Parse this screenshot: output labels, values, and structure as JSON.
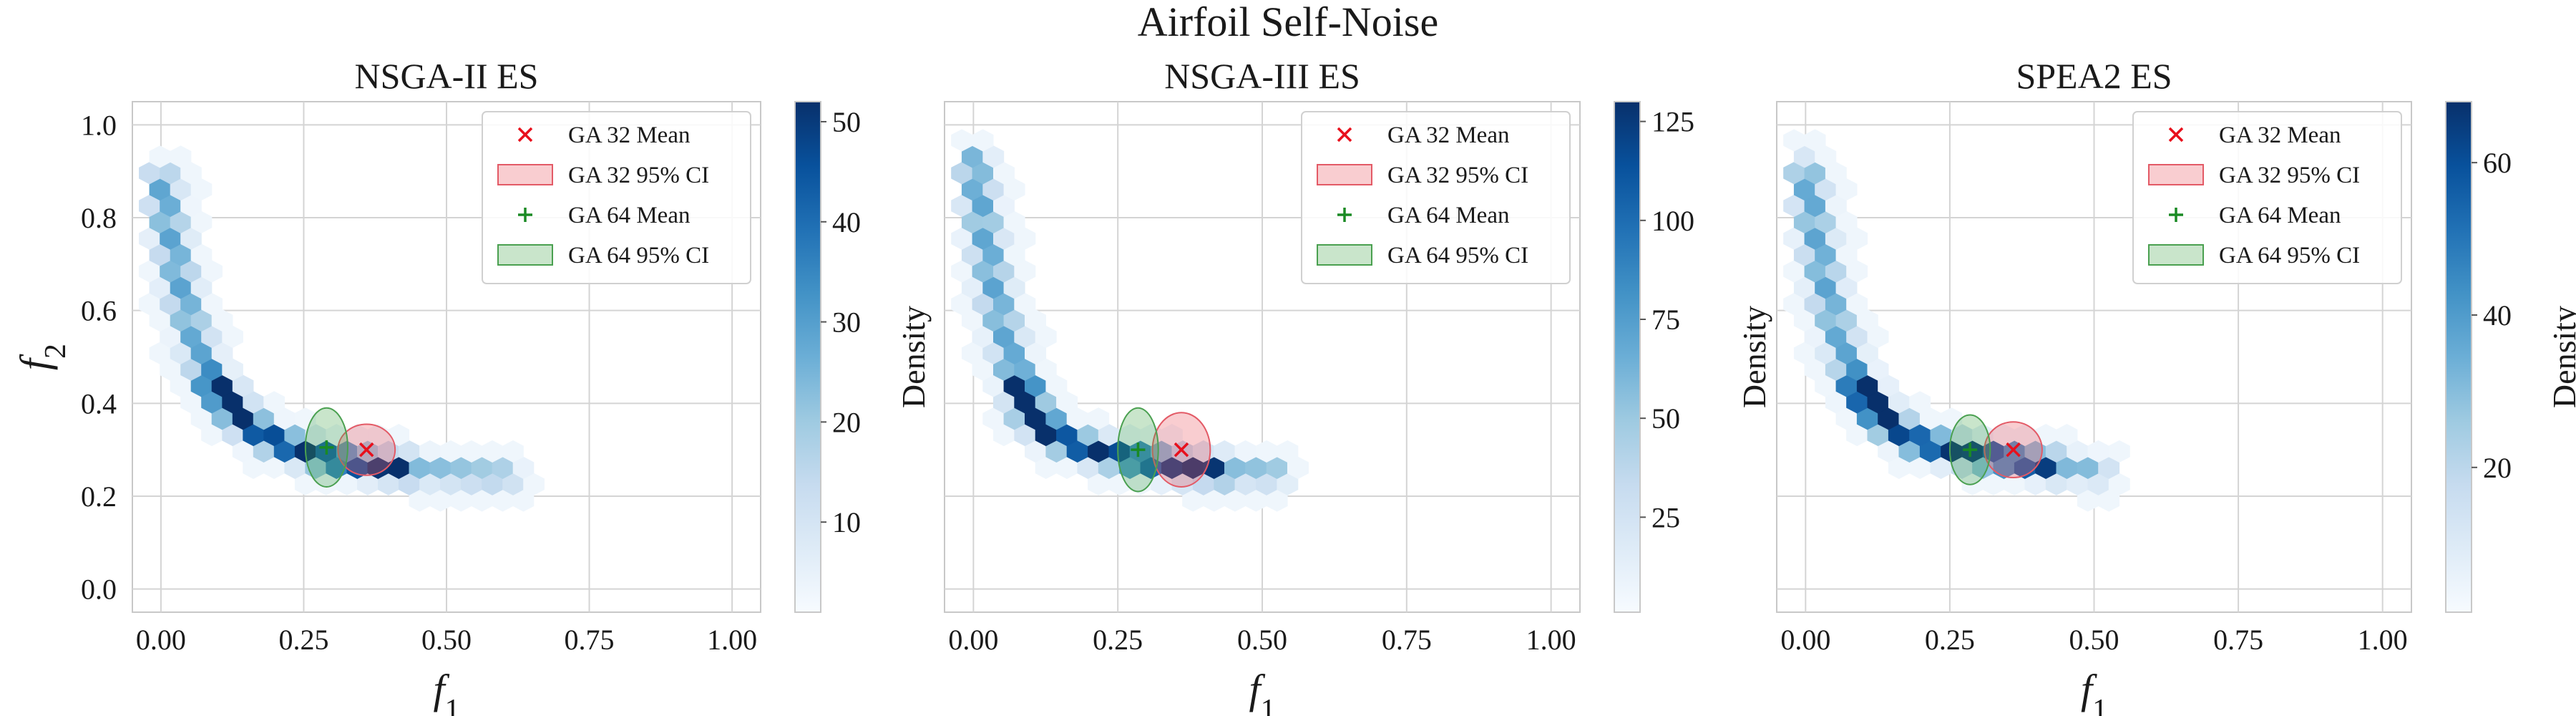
{
  "figure_title": "Airfoil Self-Noise",
  "colors": {
    "ga32": "#e8101c",
    "ga32_fill": "rgba(235,90,100,0.30)",
    "ga64": "#1a8a24",
    "ga64_fill": "rgba(60,160,70,0.28)",
    "colormap": "Blues"
  },
  "chart_data": [
    {
      "type": "heatmap",
      "title": "NSGA-II ES",
      "xlabel": "f1",
      "ylabel": "f2",
      "xlim": [
        -0.05,
        1.05
      ],
      "ylim": [
        -0.05,
        1.05
      ],
      "xticks": [
        "0.00",
        "0.25",
        "0.50",
        "0.75",
        "1.00"
      ],
      "yticks": [
        "0.0",
        "0.2",
        "0.4",
        "0.6",
        "0.8",
        "1.0"
      ],
      "grid": true,
      "colorbar": {
        "label": "Density",
        "min": 1,
        "max": 52,
        "ticks": [
          "10",
          "20",
          "30",
          "40",
          "50"
        ]
      },
      "front": [
        [
          0.0,
          0.88
        ],
        [
          0.02,
          0.74
        ],
        [
          0.04,
          0.62
        ],
        [
          0.07,
          0.5
        ],
        [
          0.1,
          0.43
        ],
        [
          0.14,
          0.37
        ],
        [
          0.18,
          0.33
        ],
        [
          0.24,
          0.3
        ],
        [
          0.3,
          0.28
        ],
        [
          0.38,
          0.265
        ],
        [
          0.48,
          0.255
        ],
        [
          0.6,
          0.245
        ]
      ],
      "legend": {
        "position": "top-right",
        "entries": [
          {
            "label": "GA 32 Mean",
            "marker": "x"
          },
          {
            "label": "GA 32 95% CI",
            "marker": "patch"
          },
          {
            "label": "GA 64 Mean",
            "marker": "+"
          },
          {
            "label": "GA 64 95% CI",
            "marker": "patch"
          }
        ]
      },
      "series": [
        {
          "name": "GA 32",
          "mean": [
            0.36,
            0.3
          ],
          "ci_half_width": [
            0.05,
            0.055
          ]
        },
        {
          "name": "GA 64",
          "mean": [
            0.29,
            0.305
          ],
          "ci_half_width": [
            0.037,
            0.085
          ]
        }
      ]
    },
    {
      "type": "heatmap",
      "title": "NSGA-III ES",
      "xlabel": "f1",
      "ylabel": "",
      "xlim": [
        -0.05,
        1.05
      ],
      "ylim": [
        -0.05,
        1.05
      ],
      "xticks": [
        "0.00",
        "0.25",
        "0.50",
        "0.75",
        "1.00"
      ],
      "yticks": [],
      "grid": true,
      "colorbar": {
        "label": "Density",
        "min": 1,
        "max": 130,
        "ticks": [
          "25",
          "50",
          "75",
          "100",
          "125"
        ]
      },
      "front": [
        [
          0.0,
          0.92
        ],
        [
          0.02,
          0.76
        ],
        [
          0.04,
          0.62
        ],
        [
          0.07,
          0.48
        ],
        [
          0.1,
          0.38
        ],
        [
          0.14,
          0.33
        ],
        [
          0.2,
          0.3
        ],
        [
          0.28,
          0.28
        ],
        [
          0.38,
          0.26
        ],
        [
          0.52,
          0.25
        ]
      ],
      "legend": {
        "position": "top-right",
        "entries": [
          {
            "label": "GA 32 Mean",
            "marker": "x"
          },
          {
            "label": "GA 32 95% CI",
            "marker": "patch"
          },
          {
            "label": "GA 64 Mean",
            "marker": "+"
          },
          {
            "label": "GA 64 95% CI",
            "marker": "patch"
          }
        ]
      },
      "series": [
        {
          "name": "GA 32",
          "mean": [
            0.36,
            0.3
          ],
          "ci_half_width": [
            0.05,
            0.08
          ]
        },
        {
          "name": "GA 64",
          "mean": [
            0.285,
            0.3
          ],
          "ci_half_width": [
            0.035,
            0.09
          ]
        }
      ]
    },
    {
      "type": "heatmap",
      "title": "SPEA2 ES",
      "xlabel": "f1",
      "ylabel": "",
      "xlim": [
        -0.05,
        1.05
      ],
      "ylim": [
        -0.05,
        1.05
      ],
      "xticks": [
        "0.00",
        "0.25",
        "0.50",
        "0.75",
        "1.00"
      ],
      "yticks": [],
      "grid": true,
      "colorbar": {
        "label": "Density",
        "min": 1,
        "max": 68,
        "ticks": [
          "20",
          "40",
          "60"
        ]
      },
      "front": [
        [
          0.0,
          0.9
        ],
        [
          0.02,
          0.75
        ],
        [
          0.04,
          0.62
        ],
        [
          0.07,
          0.5
        ],
        [
          0.1,
          0.42
        ],
        [
          0.14,
          0.36
        ],
        [
          0.19,
          0.32
        ],
        [
          0.25,
          0.3
        ],
        [
          0.32,
          0.285
        ],
        [
          0.4,
          0.27
        ],
        [
          0.5,
          0.255
        ]
      ],
      "legend": {
        "position": "top-right",
        "entries": [
          {
            "label": "GA 32 Mean",
            "marker": "x"
          },
          {
            "label": "GA 32 95% CI",
            "marker": "patch"
          },
          {
            "label": "GA 64 Mean",
            "marker": "+"
          },
          {
            "label": "GA 64 95% CI",
            "marker": "patch"
          }
        ]
      },
      "series": [
        {
          "name": "GA 32",
          "mean": [
            0.36,
            0.3
          ],
          "ci_half_width": [
            0.05,
            0.06
          ]
        },
        {
          "name": "GA 64",
          "mean": [
            0.285,
            0.3
          ],
          "ci_half_width": [
            0.035,
            0.075
          ]
        }
      ]
    }
  ]
}
